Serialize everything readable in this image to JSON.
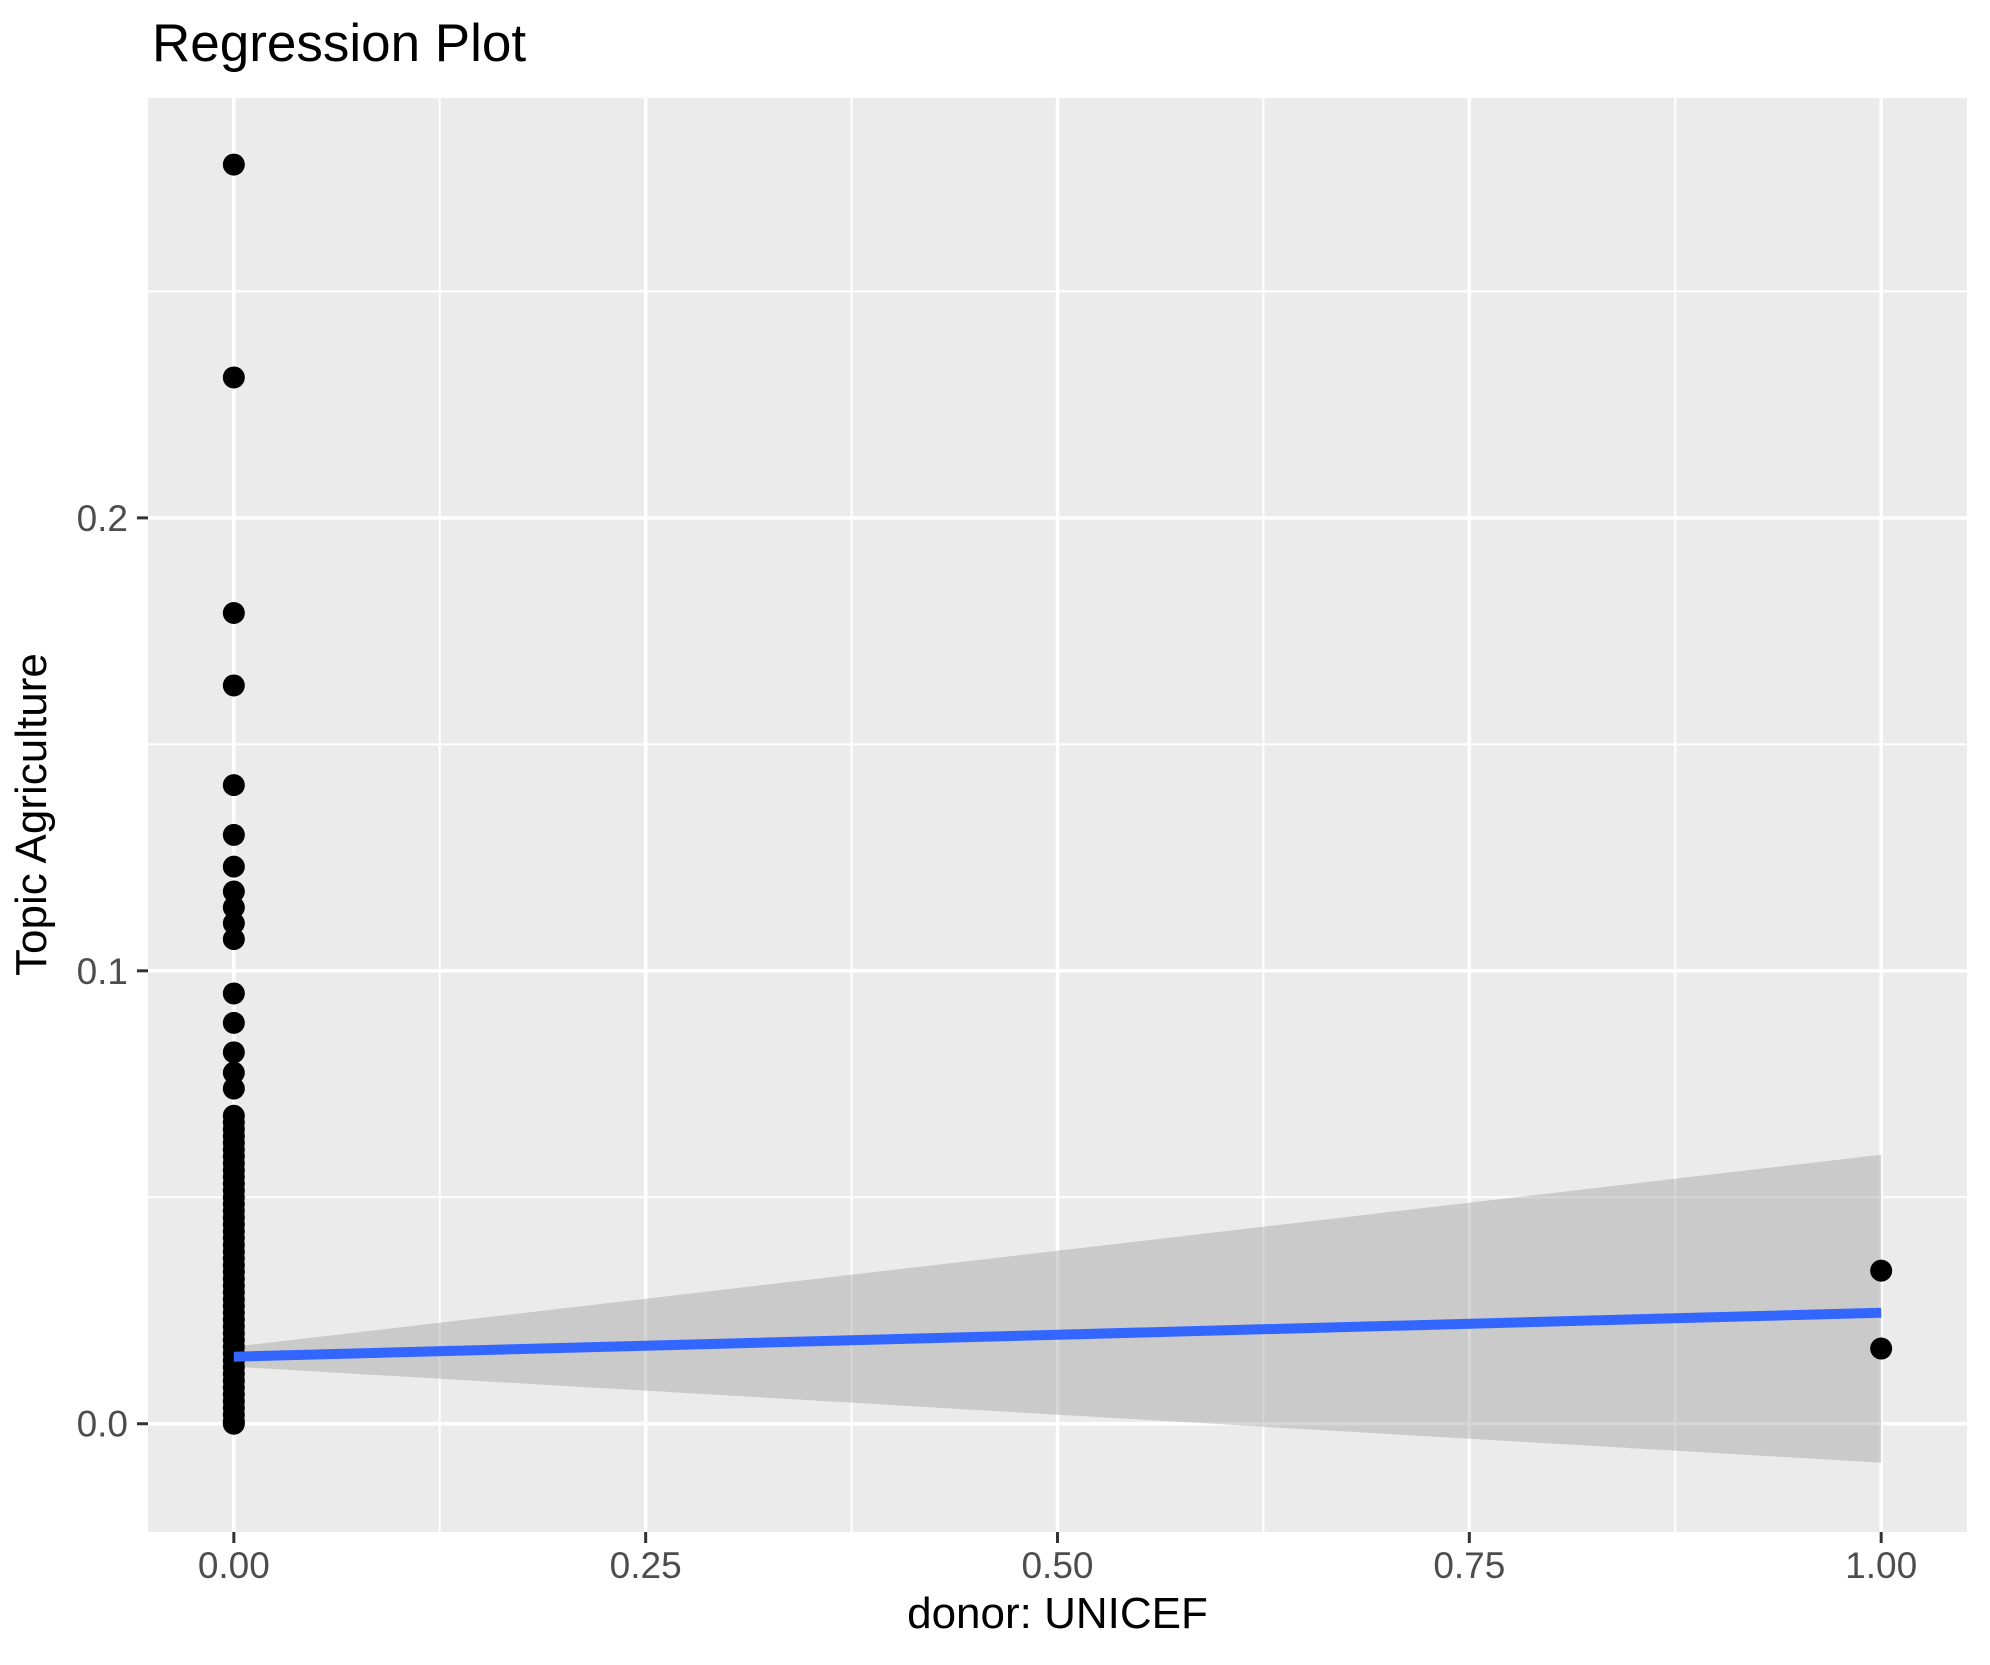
{
  "title": "Regression Plot",
  "axes": {
    "x_label": "donor: UNICEF",
    "y_label": "Topic Agriculture"
  },
  "colors": {
    "panel_background": "#EBEBEB",
    "gridline": "#FFFFFF",
    "tick_mark": "#333333",
    "tick_label": "#4D4D4D",
    "title_text": "#000000",
    "point": "#000000",
    "regression_line": "#3366FF",
    "confidence_band": "rgba(153,153,153,0.40)"
  },
  "chart_data": {
    "type": "scatter",
    "title": "Regression Plot",
    "xlabel": "donor: UNICEF",
    "ylabel": "Topic Agriculture",
    "xlim": [
      -0.0521,
      1.0521
    ],
    "ylim": [
      -0.0239,
      0.2927
    ],
    "grid": "on",
    "legend": "none",
    "x_ticks": [
      {
        "v": 0.0,
        "label": "0.00"
      },
      {
        "v": 0.25,
        "label": "0.25"
      },
      {
        "v": 0.5,
        "label": "0.50"
      },
      {
        "v": 0.75,
        "label": "0.75"
      },
      {
        "v": 1.0,
        "label": "1.00"
      }
    ],
    "y_ticks": [
      {
        "v": 0.0,
        "label": "0.0"
      },
      {
        "v": 0.1,
        "label": "0.1"
      },
      {
        "v": 0.2,
        "label": "0.2"
      }
    ],
    "x_minor": [
      0.125,
      0.375,
      0.625,
      0.875
    ],
    "y_minor": [
      0.05,
      0.15,
      0.25
    ],
    "series": [
      {
        "name": "observations_x0",
        "x": 0,
        "y": [
          0.278,
          0.231,
          0.179,
          0.163,
          0.141,
          0.13,
          0.123,
          0.1175,
          0.114,
          0.1105,
          0.107,
          0.095,
          0.0885,
          0.082,
          0.0775,
          0.074,
          0.068,
          0.0665,
          0.065,
          0.0635,
          0.062,
          0.0605,
          0.059,
          0.0575,
          0.056,
          0.0545,
          0.053,
          0.0515,
          0.05,
          0.0485,
          0.047,
          0.0455,
          0.044,
          0.0425,
          0.041,
          0.0395,
          0.038,
          0.0365,
          0.035,
          0.0335,
          0.032,
          0.0305,
          0.029,
          0.0275,
          0.026,
          0.0245,
          0.023,
          0.0215,
          0.02,
          0.0185,
          0.017,
          0.0155,
          0.014,
          0.0125,
          0.011,
          0.0095,
          0.008,
          0.0065,
          0.005,
          0.0035,
          0.002,
          0.0005,
          0.0
        ]
      },
      {
        "name": "observations_x1",
        "x": 1,
        "y": [
          0.0338,
          0.0166
        ]
      }
    ],
    "regression_line": {
      "x": [
        0,
        1
      ],
      "y": [
        0.0148,
        0.0245
      ]
    },
    "confidence_band": {
      "x": [
        0,
        1
      ],
      "top": [
        0.017,
        0.0594
      ],
      "bottom": [
        0.0126,
        -0.0086
      ]
    },
    "point_radius_px": 11
  }
}
